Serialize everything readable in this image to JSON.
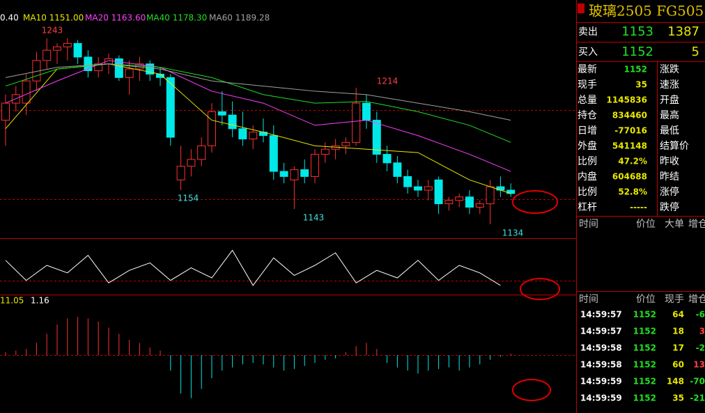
{
  "header": {
    "labels": [
      {
        "text": "0.40",
        "color": "#ffffff"
      },
      {
        "text": "MA10 1151.00",
        "color": "#e8e800"
      },
      {
        "text": "MA20 1163.60",
        "color": "#ff40ff"
      },
      {
        "text": "MA40 1178.30",
        "color": "#20e020"
      },
      {
        "text": "MA60 1189.28",
        "color": "#a0a0a0"
      }
    ],
    "macd_labels": [
      "11.05",
      "1.16"
    ]
  },
  "chart": {
    "up_color": "#ff3030",
    "down_color": "#00e8e8",
    "candles": [
      [
        1195,
        1210,
        1180,
        1205
      ],
      [
        1205,
        1215,
        1200,
        1210
      ],
      [
        1205,
        1222,
        1198,
        1218
      ],
      [
        1218,
        1235,
        1212,
        1230
      ],
      [
        1230,
        1243,
        1225,
        1236
      ],
      [
        1236,
        1240,
        1228,
        1238
      ],
      [
        1238,
        1243,
        1230,
        1240
      ],
      [
        1240,
        1242,
        1228,
        1232
      ],
      [
        1232,
        1236,
        1220,
        1224
      ],
      [
        1224,
        1232,
        1220,
        1228
      ],
      [
        1228,
        1234,
        1222,
        1231
      ],
      [
        1231,
        1233,
        1218,
        1220
      ],
      [
        1220,
        1230,
        1210,
        1225
      ],
      [
        1225,
        1232,
        1218,
        1228
      ],
      [
        1228,
        1230,
        1218,
        1222
      ],
      [
        1222,
        1226,
        1215,
        1220
      ],
      [
        1220,
        1222,
        1180,
        1185
      ],
      [
        1160,
        1180,
        1154,
        1168
      ],
      [
        1168,
        1178,
        1162,
        1172
      ],
      [
        1172,
        1185,
        1168,
        1180
      ],
      [
        1180,
        1205,
        1176,
        1200
      ],
      [
        1200,
        1212,
        1192,
        1198
      ],
      [
        1198,
        1206,
        1185,
        1190
      ],
      [
        1190,
        1200,
        1180,
        1184
      ],
      [
        1184,
        1192,
        1178,
        1188
      ],
      [
        1188,
        1196,
        1182,
        1186
      ],
      [
        1186,
        1192,
        1160,
        1165
      ],
      [
        1165,
        1170,
        1158,
        1162
      ],
      [
        1160,
        1168,
        1143,
        1166
      ],
      [
        1166,
        1172,
        1158,
        1162
      ],
      [
        1162,
        1178,
        1158,
        1175
      ],
      [
        1175,
        1182,
        1170,
        1178
      ],
      [
        1178,
        1184,
        1172,
        1180
      ],
      [
        1180,
        1185,
        1175,
        1182
      ],
      [
        1182,
        1214,
        1180,
        1205
      ],
      [
        1205,
        1210,
        1190,
        1195
      ],
      [
        1195,
        1200,
        1170,
        1175
      ],
      [
        1175,
        1180,
        1165,
        1170
      ],
      [
        1170,
        1174,
        1158,
        1162
      ],
      [
        1162,
        1166,
        1152,
        1156
      ],
      [
        1156,
        1160,
        1150,
        1154
      ],
      [
        1154,
        1160,
        1148,
        1156
      ],
      [
        1160,
        1162,
        1140,
        1146
      ],
      [
        1146,
        1150,
        1142,
        1148
      ],
      [
        1148,
        1152,
        1144,
        1150
      ],
      [
        1150,
        1154,
        1140,
        1144
      ],
      [
        1144,
        1148,
        1140,
        1146
      ],
      [
        1146,
        1160,
        1134,
        1156
      ],
      [
        1156,
        1162,
        1150,
        1154
      ],
      [
        1154,
        1158,
        1150,
        1152
      ]
    ],
    "ma_lines": [
      {
        "color": "#e8e800",
        "values": [
          1190,
          1225,
          1228,
          1222,
          1195,
          1188,
          1180,
          1178,
          1176,
          1160,
          1152
        ]
      },
      {
        "color": "#ff40ff",
        "values": [
          1205,
          1218,
          1230,
          1226,
          1212,
          1205,
          1192,
          1195,
          1186,
          1175,
          1165
        ]
      },
      {
        "color": "#20e020",
        "values": [
          1215,
          1225,
          1228,
          1226,
          1220,
          1210,
          1205,
          1206,
          1200,
          1192,
          1182
        ]
      },
      {
        "color": "#a0a0a0",
        "values": [
          1220,
          1226,
          1228,
          1225,
          1218,
          1215,
          1212,
          1210,
          1205,
          1200,
          1195
        ]
      }
    ],
    "price_labels": [
      {
        "text": "1243",
        "color": "#ff4040"
      },
      {
        "text": "1214",
        "color": "#ff4040"
      },
      {
        "text": "1154",
        "color": "#40e0e0"
      },
      {
        "text": "1143",
        "color": "#40e0e0"
      },
      {
        "text": "1134",
        "color": "#40e0e0"
      }
    ],
    "osc": [
      60,
      20,
      50,
      35,
      70,
      15,
      40,
      55,
      20,
      45,
      25,
      80,
      10,
      65,
      30,
      50,
      75,
      15,
      40,
      25,
      60,
      20,
      50,
      35,
      10
    ],
    "macd": [
      2,
      3,
      4,
      8,
      14,
      20,
      24,
      25,
      24,
      22,
      18,
      14,
      10,
      8,
      5,
      3,
      -10,
      -25,
      -28,
      -22,
      -15,
      -10,
      -8,
      -6,
      -5,
      -6,
      -8,
      -10,
      -9,
      -7,
      -5,
      -3,
      -2,
      2,
      6,
      8,
      4,
      -5,
      -8,
      -10,
      -12,
      -10,
      -9,
      -8,
      -10,
      -8,
      -6,
      -3,
      -1,
      1
    ]
  },
  "quote": {
    "title": "玻璃2505 FG505",
    "sell": {
      "label": "卖出",
      "price": 1153,
      "volume": 1387
    },
    "buy": {
      "label": "买入",
      "price": 1152,
      "volume": 5
    },
    "stats": [
      [
        "最新",
        1152,
        "涨跌"
      ],
      [
        "现手",
        35,
        "速涨"
      ],
      [
        "总量",
        1145836,
        "开盘"
      ],
      [
        "持仓",
        834460,
        "最高"
      ],
      [
        "日增",
        -77016,
        "最低"
      ],
      [
        "外盘",
        541148,
        "结算价"
      ],
      [
        "比例",
        "47.2%",
        "昨收"
      ],
      [
        "内盘",
        604688,
        "昨结"
      ],
      [
        "比例",
        "52.8%",
        "涨停"
      ],
      [
        "杠杆",
        "-----",
        "跌停"
      ]
    ],
    "detail_headers": [
      "时间",
      "价位",
      "大单",
      "增仓"
    ],
    "trade_headers": [
      "时间",
      "价位",
      "现手",
      "增仓"
    ],
    "trades": [
      [
        "14:59:57",
        1152,
        64,
        "-6"
      ],
      [
        "14:59:57",
        1152,
        18,
        "3"
      ],
      [
        "14:59:58",
        1152,
        17,
        "-2"
      ],
      [
        "14:59:58",
        1152,
        60,
        "13"
      ],
      [
        "14:59:59",
        1152,
        148,
        "-70"
      ],
      [
        "14:59:59",
        1152,
        35,
        "-21"
      ]
    ]
  }
}
